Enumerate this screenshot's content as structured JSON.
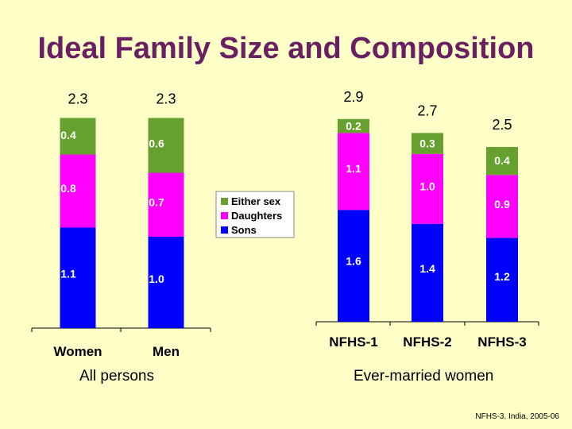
{
  "title": "Ideal Family Size and Composition",
  "colors": {
    "sons": "#0000FF",
    "daughters": "#FF00FF",
    "either_sex": "#66A02E",
    "background": "#FFFFC8",
    "title": "#6B1F63"
  },
  "chart_data": [
    {
      "type": "bar",
      "stacked": true,
      "caption": "All persons",
      "categories": [
        "Women",
        "Men"
      ],
      "totals": [
        "2.3",
        "2.3"
      ],
      "series": [
        {
          "name": "Sons",
          "values": [
            1.1,
            1.0
          ],
          "labels": [
            "1.1",
            "1.0"
          ]
        },
        {
          "name": "Daughters",
          "values": [
            0.8,
            0.7
          ],
          "labels": [
            "0.8",
            "0.7"
          ]
        },
        {
          "name": "Either sex",
          "values": [
            0.4,
            0.6
          ],
          "labels": [
            "0.4",
            "0.6"
          ]
        }
      ],
      "legend": {
        "entries": [
          "Either sex",
          "Daughters",
          "Sons"
        ],
        "placement": "right"
      }
    },
    {
      "type": "bar",
      "stacked": true,
      "caption": "Ever-married women",
      "categories": [
        "NFHS-1",
        "NFHS-2",
        "NFHS-3"
      ],
      "totals": [
        "2.9",
        "2.7",
        "2.5"
      ],
      "series": [
        {
          "name": "Sons",
          "values": [
            1.6,
            1.4,
            1.2
          ],
          "labels": [
            "1.6",
            "1.4",
            "1.2"
          ]
        },
        {
          "name": "Daughters",
          "values": [
            1.1,
            1.0,
            0.9
          ],
          "labels": [
            "1.1",
            "1.0",
            "0.9"
          ]
        },
        {
          "name": "Either sex",
          "values": [
            0.2,
            0.3,
            0.4
          ],
          "labels": [
            "0.2",
            "0.3",
            "0.4"
          ]
        }
      ]
    }
  ],
  "source": "NFHS-3, India, 2005-06"
}
